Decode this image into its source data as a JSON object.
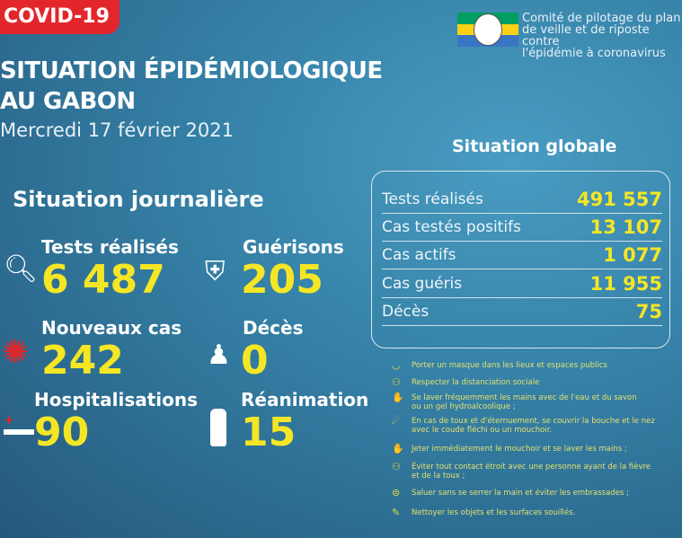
{
  "header": {
    "badge": "COVID-19",
    "title_line1": "SITUATION ÉPIDÉMIOLOGIQUE",
    "title_line2": "AU GABON",
    "date": "Mercredi 17 février 2021"
  },
  "org": {
    "text_line1": "Comité de pilotage du plan",
    "text_line2": "de veille et de riposte contre",
    "text_line3": "l'épidémie à coronavirus",
    "flag_colors": [
      "#009e60",
      "#fcd116",
      "#3a75c4"
    ]
  },
  "daily": {
    "title": "Situation journalière",
    "items": [
      {
        "label": "Tests réalisés",
        "value": "6 487",
        "icon": "magnifier-icon"
      },
      {
        "label": "Guérisons",
        "value": "205",
        "icon": "shield-cross-icon"
      },
      {
        "label": "Nouveaux cas",
        "value": "242",
        "icon": "virus-icon"
      },
      {
        "label": "Décès",
        "value": "0",
        "icon": "person-cross-icon"
      },
      {
        "label": "Hospitalisations",
        "value": "90",
        "icon": "hospital-bed-icon"
      },
      {
        "label": "Réanimation",
        "value": "15",
        "icon": "oxygen-tank-icon"
      }
    ]
  },
  "global": {
    "title": "Situation globale",
    "rows": [
      {
        "label": "Tests réalisés",
        "value": "491 557"
      },
      {
        "label": "Cas testés positifs",
        "value": "13 107"
      },
      {
        "label": "Cas actifs",
        "value": "1 077"
      },
      {
        "label": "Cas guéris",
        "value": "11 955"
      },
      {
        "label": "Décès",
        "value": "75"
      }
    ]
  },
  "tips": [
    {
      "l1": "Porter un masque dans les lieux et espaces publics",
      "l2": ""
    },
    {
      "l1": "Respecter la distanciation sociale",
      "l2": ""
    },
    {
      "l1": "Se laver fréquemment les mains avec de l'eau et du savon",
      "l2": "ou un gel hydroalcoolique ;"
    },
    {
      "l1": "En cas de toux et d'éternuement, se couvrir la bouche et le nez",
      "l2": "avec le coude fléchi ou un mouchoir."
    },
    {
      "l1": "Jeter immédiatement le mouchoir et se laver les mains ;",
      "l2": ""
    },
    {
      "l1": "Éviter tout contact étroit avec une personne ayant de la fièvre",
      "l2": "et de la toux ;"
    },
    {
      "l1": "Saluer sans se serrer la main et éviter les embrassades ;",
      "l2": ""
    },
    {
      "l1": "Nettoyer les objets et les surfaces souillés.",
      "l2": ""
    }
  ],
  "colors": {
    "accent": "#f5e625",
    "badge": "#e3262b"
  }
}
